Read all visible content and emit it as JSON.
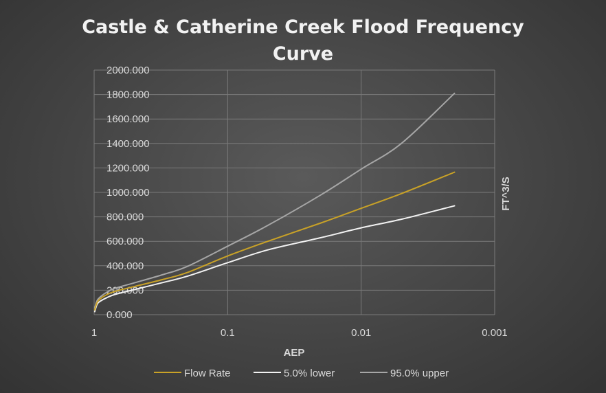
{
  "chart_data": {
    "type": "line",
    "title_lines": [
      "Castle & Catherine Creek Flood Frequency",
      "Curve"
    ],
    "xlabel": "AEP",
    "ylabel": "FT^3/S",
    "x_scale": "log-reversed",
    "xlim": [
      1,
      0.001
    ],
    "ylim": [
      0,
      2000
    ],
    "x_ticks": [
      1,
      0.1,
      0.01,
      0.001
    ],
    "x_tick_labels": [
      "1",
      "0.1",
      "0.01",
      "0.001"
    ],
    "y_ticks": [
      0,
      200,
      400,
      600,
      800,
      1000,
      1200,
      1400,
      1600,
      1800,
      2000
    ],
    "y_tick_labels": [
      "0.000",
      "200.000",
      "400.000",
      "600.000",
      "800.000",
      "1000.000",
      "1200.000",
      "1400.000",
      "1600.000",
      "1800.000",
      "2000.000"
    ],
    "grid": true,
    "legend_position": "bottom",
    "x": [
      0.99,
      0.95,
      0.9,
      0.8,
      0.7,
      0.5,
      0.3,
      0.2,
      0.1,
      0.05,
      0.02,
      0.01,
      0.005,
      0.002
    ],
    "series": [
      {
        "name": "Flow Rate",
        "color": "#c9a227",
        "values": [
          40,
          100,
          130,
          165,
          190,
          230,
          290,
          345,
          480,
          600,
          750,
          870,
          990,
          1165
        ]
      },
      {
        "name": "5.0% lower",
        "color": "#f2f2f2",
        "values": [
          25,
          85,
          110,
          140,
          165,
          205,
          265,
          315,
          425,
          530,
          630,
          710,
          780,
          890
        ]
      },
      {
        "name": "95.0% upper",
        "color": "#a6a6a6",
        "values": [
          55,
          115,
          145,
          185,
          215,
          260,
          330,
          395,
          560,
          730,
          980,
          1190,
          1400,
          1810
        ]
      }
    ]
  }
}
